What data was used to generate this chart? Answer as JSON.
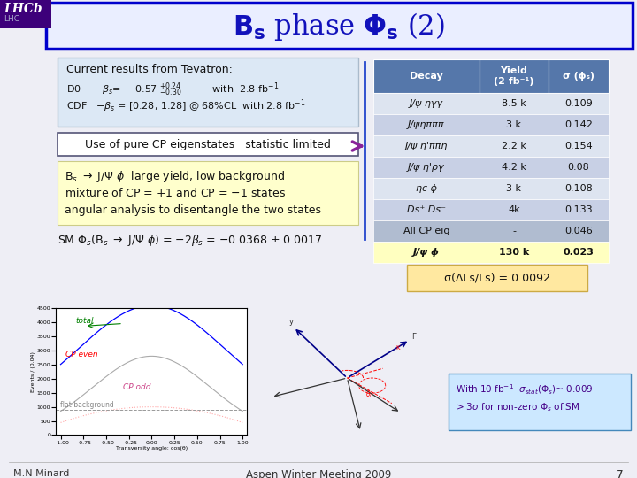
{
  "title": "B$_s$ phase $\\Phi_s$ (2)",
  "slide_bg": "#eeeef5",
  "header_border": "#0000cc",
  "lhcb_bg": "#3d007a",
  "tevatron_title": "Current results from Tevatron:",
  "pure_cp_box": "Use of pure CP eigenstates   statistic limited",
  "cp_line1": "B$_s$ \\u2192 J/\\u03a8 \\u03d5  large yield, low background",
  "cp_line2": "mixture of CP = +1 and CP = \\u22121 states",
  "cp_line3": "angular analysis to disentangle the two states",
  "sm_line": "SM $\\Phi_s$(B$_s$ \\u2192 J/\\u03a8 \\u03d5) = \\u22122$\\beta_s$ = \\u22120.0368 \\u00b1 0.0017",
  "table_header_bg": "#5577aa",
  "table_header_text": "#ffffff",
  "table_row_bg1": "#dde4f0",
  "table_row_bg2": "#c8d0e5",
  "table_highlight_bg": "#ffffc0",
  "table_all_cp_bg": "#b0bcd0",
  "table_cols": [
    "Decay",
    "Yield\n(2 fb⁻¹)",
    "σ (ϕₛ)"
  ],
  "table_rows": [
    [
      "J/ψ ηγγ",
      "8.5 k",
      "0.109"
    ],
    [
      "J/ψηπππ",
      "3 k",
      "0.142"
    ],
    [
      "J/ψ η'ππη",
      "2.2 k",
      "0.154"
    ],
    [
      "J/ψ η'ργ",
      "4.2 k",
      "0.08"
    ],
    [
      "ηc ϕ",
      "3 k",
      "0.108"
    ],
    [
      "Ds⁺ Ds⁻",
      "4k",
      "0.133"
    ],
    [
      "All CP eig",
      "-",
      "0.046"
    ],
    [
      "J/ψ ϕ",
      "130 k",
      "0.023"
    ]
  ],
  "sigma_text": "σ(ΔΓs/Γs) = 0.0092",
  "sigma_box_bg": "#ffe8a0",
  "future_line1": "With 10 fb⁻¹  σstat(Φs)~ 0.009",
  "future_line2": "> 3σ for non-zero Φs of SM",
  "future_box_bg": "#cce8ff",
  "future_box_border": "#4488bb",
  "arrow_color": "#882299",
  "footer_author": "M.N Minard",
  "footer_conf": "Aspen Winter Meeting 2009",
  "footer_page": "7"
}
